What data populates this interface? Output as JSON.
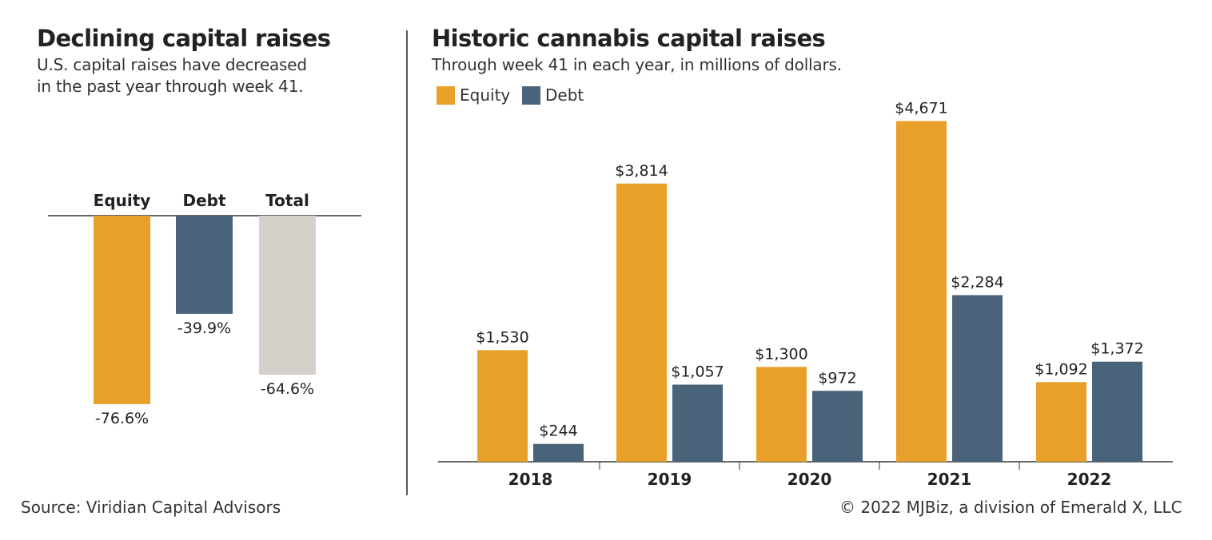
{
  "colors": {
    "equity": "#E9A02A",
    "debt": "#48637A",
    "total": "#D5D0C9",
    "axis": "#333333",
    "text": "#222222"
  },
  "chart_data": [
    {
      "type": "bar",
      "title": "Declining capital raises",
      "subtitle_lines": [
        "U.S. capital raises have decreased",
        "in the past year through week 41."
      ],
      "categories": [
        "Equity",
        "Debt",
        "Total"
      ],
      "values": [
        -76.6,
        -39.9,
        -64.6
      ],
      "value_labels": [
        "-76.6%",
        "-39.9%",
        "-64.6%"
      ],
      "ylim": [
        -100,
        0
      ],
      "grid": false
    },
    {
      "type": "bar",
      "title": "Historic cannabis capital raises",
      "subtitle": "Through week 41 in each year, in millions of dollars.",
      "categories": [
        "2018",
        "2019",
        "2020",
        "2021",
        "2022"
      ],
      "series": [
        {
          "name": "Equity",
          "values": [
            1530,
            3814,
            1300,
            4671,
            1092
          ],
          "labels": [
            "$1,530",
            "$3,814",
            "$1,300",
            "$4,671",
            "$1,092"
          ]
        },
        {
          "name": "Debt",
          "values": [
            244,
            1057,
            972,
            2284,
            1372
          ],
          "labels": [
            "$244",
            "$1,057",
            "$972",
            "$2,284",
            "$1,372"
          ]
        }
      ],
      "ylim": [
        0,
        5000
      ],
      "legend_position": "top-left",
      "grid": false
    }
  ],
  "footer": {
    "source": "Source: Viridian Capital Advisors",
    "copyright": "© 2022 MJBiz, a division of Emerald X, LLC"
  }
}
